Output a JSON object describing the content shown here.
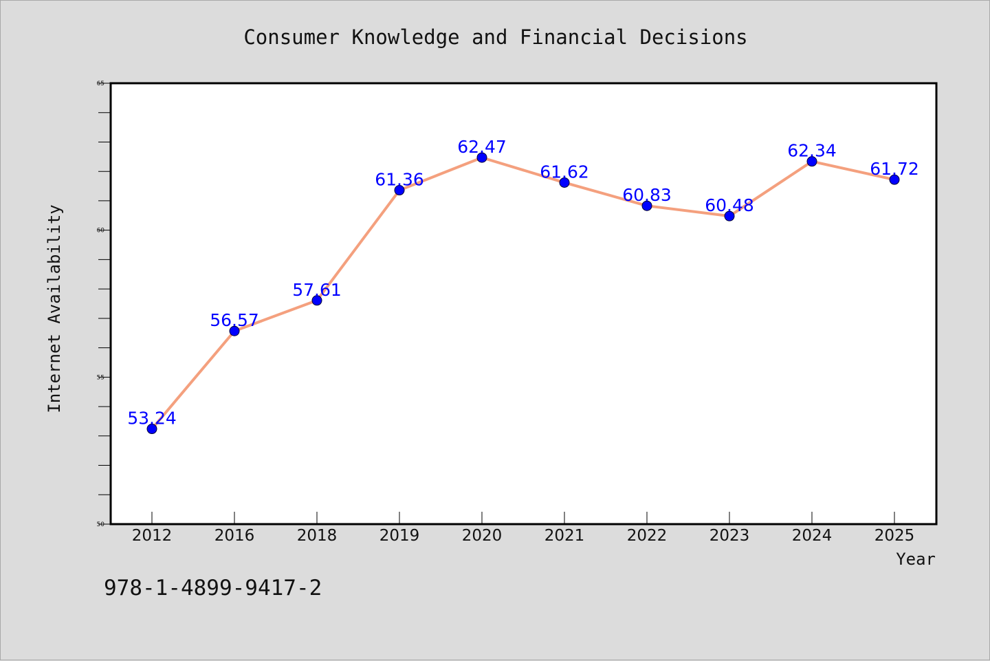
{
  "chart_data": {
    "type": "line",
    "title": "Consumer Knowledge and Financial Decisions",
    "xlabel": "Year",
    "ylabel": "Internet Availability",
    "categories": [
      "2012",
      "2016",
      "2018",
      "2019",
      "2020",
      "2021",
      "2022",
      "2023",
      "2024",
      "2025"
    ],
    "values": [
      53.24,
      56.57,
      57.61,
      61.36,
      62.47,
      61.62,
      60.83,
      60.48,
      62.34,
      61.72
    ],
    "data_labels": [
      "53.24",
      "56.57",
      "57.61",
      "61.36",
      "62.47",
      "61.62",
      "60.83",
      "60.48",
      "62.34",
      "61.72"
    ],
    "ylim": [
      50,
      65
    ],
    "yticks": [
      50,
      55,
      60,
      65
    ],
    "ytick_labels": [
      "50",
      "55",
      "60",
      "65"
    ],
    "grid": false,
    "line_color": "#f4a07e",
    "marker_color": "#0000ff",
    "label_color": "#0000ff"
  },
  "footer": {
    "isbn": "978-1-4899-9417-2"
  }
}
